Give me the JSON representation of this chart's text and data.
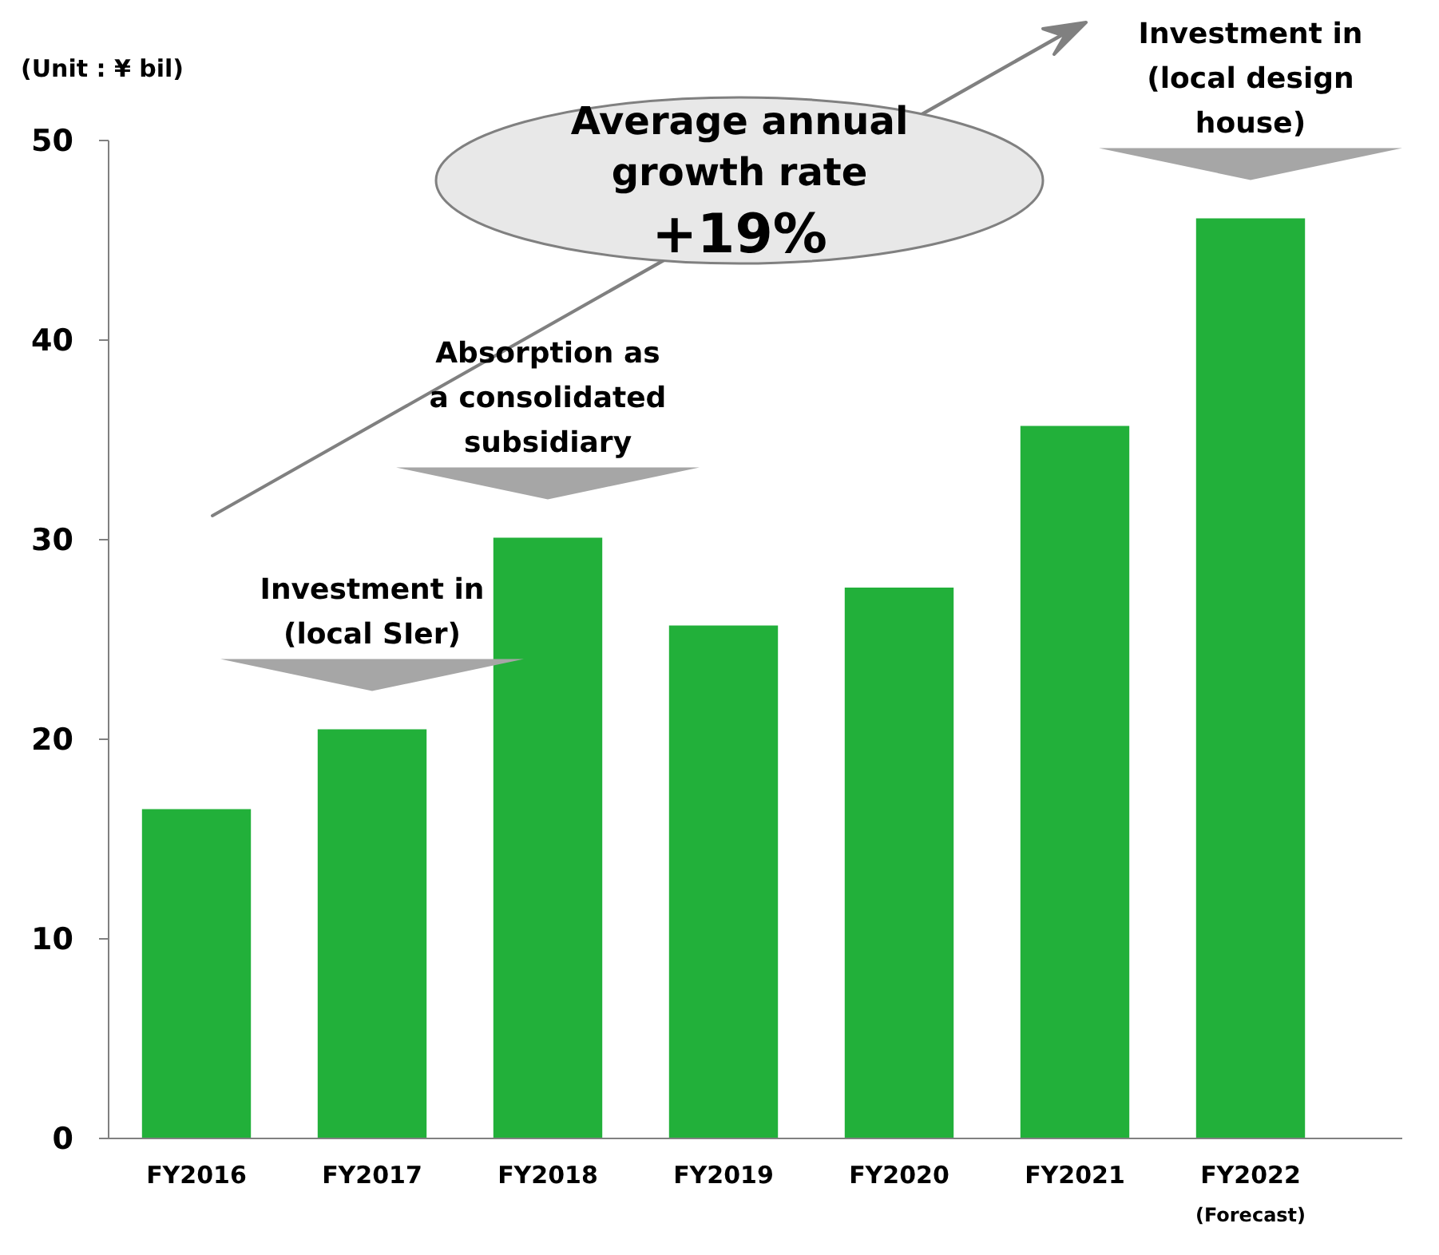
{
  "chart_data": {
    "type": "bar",
    "categories": [
      "FY2016",
      "FY2017",
      "FY2018",
      "FY2019",
      "FY2020",
      "FY2021",
      "FY2022 (Forecast)"
    ],
    "values": [
      16.5,
      20.5,
      30.1,
      25.7,
      27.6,
      35.7,
      46.1
    ],
    "color": "#22b03a",
    "ylim": [
      0,
      50
    ],
    "yticks": [
      0,
      10,
      20,
      30,
      40,
      50
    ],
    "ylabel": "(Unit : ¥ bil)",
    "annotations": [
      "Average annual growth rate +19%",
      {
        "text": "Investment in (local SIer)",
        "x": "FY2017",
        "y": 20.5
      },
      {
        "text": "Absorption as a consolidated subsidiary",
        "x": "FY2018",
        "y": 30.1
      },
      {
        "text": "Investment in (local design house)",
        "x": "FY2022 (Forecast)",
        "y": 46.1
      }
    ],
    "grid": false
  }
}
